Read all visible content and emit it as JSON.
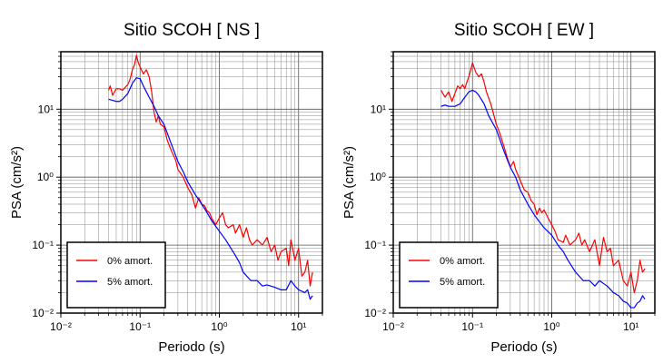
{
  "chart_data": [
    {
      "type": "line",
      "title": "Sitio SCOH [ NS ]",
      "xlabel": "Periodo (s)",
      "ylabel": "PSA (cm/s²)",
      "xscale": "log",
      "yscale": "log",
      "xlim": [
        0.01,
        20
      ],
      "ylim": [
        0.01,
        70
      ],
      "grid": true,
      "legend_position": "bottom-left",
      "x_tick_labels": [
        "10⁻²",
        "10⁻¹",
        "10⁰",
        "10¹"
      ],
      "y_tick_labels": [
        "10⁻²",
        "10⁻¹",
        "10⁰",
        "10¹"
      ],
      "series": [
        {
          "name": "0% amort.",
          "color": "#ff0000",
          "points": [
            [
              0.04,
              19
            ],
            [
              0.042,
              22
            ],
            [
              0.045,
              16
            ],
            [
              0.05,
              20
            ],
            [
              0.055,
              20
            ],
            [
              0.06,
              19
            ],
            [
              0.065,
              21
            ],
            [
              0.07,
              23
            ],
            [
              0.075,
              28
            ],
            [
              0.08,
              38
            ],
            [
              0.085,
              45
            ],
            [
              0.09,
              62
            ],
            [
              0.095,
              48
            ],
            [
              0.1,
              42
            ],
            [
              0.11,
              33
            ],
            [
              0.12,
              38
            ],
            [
              0.13,
              30
            ],
            [
              0.14,
              18
            ],
            [
              0.15,
              9
            ],
            [
              0.16,
              6.5
            ],
            [
              0.17,
              8
            ],
            [
              0.18,
              6
            ],
            [
              0.2,
              5.5
            ],
            [
              0.22,
              3.5
            ],
            [
              0.25,
              2.4
            ],
            [
              0.28,
              1.8
            ],
            [
              0.3,
              1.3
            ],
            [
              0.35,
              1.0
            ],
            [
              0.4,
              0.7
            ],
            [
              0.45,
              0.55
            ],
            [
              0.5,
              0.35
            ],
            [
              0.55,
              0.5
            ],
            [
              0.6,
              0.4
            ],
            [
              0.65,
              0.38
            ],
            [
              0.7,
              0.32
            ],
            [
              0.75,
              0.3
            ],
            [
              0.8,
              0.25
            ],
            [
              0.9,
              0.2
            ],
            [
              1.0,
              0.25
            ],
            [
              1.1,
              0.3
            ],
            [
              1.2,
              0.2
            ],
            [
              1.3,
              0.18
            ],
            [
              1.5,
              0.2
            ],
            [
              1.6,
              0.15
            ],
            [
              1.8,
              0.2
            ],
            [
              2.0,
              0.13
            ],
            [
              2.2,
              0.18
            ],
            [
              2.4,
              0.12
            ],
            [
              2.6,
              0.1
            ],
            [
              3.0,
              0.12
            ],
            [
              3.5,
              0.1
            ],
            [
              4.0,
              0.13
            ],
            [
              4.5,
              0.08
            ],
            [
              5.0,
              0.1
            ],
            [
              5.5,
              0.06
            ],
            [
              6.0,
              0.08
            ],
            [
              7.0,
              0.09
            ],
            [
              7.5,
              0.05
            ],
            [
              8.0,
              0.12
            ],
            [
              9.0,
              0.06
            ],
            [
              10.0,
              0.09
            ],
            [
              11.0,
              0.035
            ],
            [
              12.0,
              0.04
            ],
            [
              13.0,
              0.06
            ],
            [
              14.0,
              0.025
            ],
            [
              15.0,
              0.04
            ]
          ]
        },
        {
          "name": "5% amort.",
          "color": "#0000ff",
          "points": [
            [
              0.04,
              14
            ],
            [
              0.045,
              13.5
            ],
            [
              0.05,
              13
            ],
            [
              0.055,
              13
            ],
            [
              0.06,
              14
            ],
            [
              0.07,
              17
            ],
            [
              0.08,
              24
            ],
            [
              0.09,
              29
            ],
            [
              0.1,
              28
            ],
            [
              0.11,
              22
            ],
            [
              0.12,
              18
            ],
            [
              0.13,
              15
            ],
            [
              0.15,
              11
            ],
            [
              0.17,
              8
            ],
            [
              0.2,
              6
            ],
            [
              0.25,
              3
            ],
            [
              0.3,
              1.7
            ],
            [
              0.35,
              1.2
            ],
            [
              0.4,
              0.85
            ],
            [
              0.5,
              0.55
            ],
            [
              0.6,
              0.4
            ],
            [
              0.7,
              0.3
            ],
            [
              0.8,
              0.23
            ],
            [
              0.9,
              0.19
            ],
            [
              1.0,
              0.16
            ],
            [
              1.2,
              0.12
            ],
            [
              1.4,
              0.09
            ],
            [
              1.6,
              0.07
            ],
            [
              1.8,
              0.055
            ],
            [
              2.0,
              0.04
            ],
            [
              2.5,
              0.03
            ],
            [
              3.0,
              0.03
            ],
            [
              3.5,
              0.025
            ],
            [
              4.0,
              0.026
            ],
            [
              5.0,
              0.024
            ],
            [
              6.0,
              0.022
            ],
            [
              7.0,
              0.022
            ],
            [
              8.0,
              0.03
            ],
            [
              9.0,
              0.025
            ],
            [
              10.0,
              0.022
            ],
            [
              12.0,
              0.02
            ],
            [
              13.0,
              0.022
            ],
            [
              14.0,
              0.016
            ],
            [
              15.0,
              0.018
            ]
          ]
        }
      ]
    },
    {
      "type": "line",
      "title": "Sitio SCOH [ EW ]",
      "xlabel": "Periodo (s)",
      "ylabel": "PSA (cm/s²)",
      "xscale": "log",
      "yscale": "log",
      "xlim": [
        0.01,
        20
      ],
      "ylim": [
        0.01,
        70
      ],
      "grid": true,
      "legend_position": "bottom-left",
      "x_tick_labels": [
        "10⁻²",
        "10⁻¹",
        "10⁰",
        "10¹"
      ],
      "y_tick_labels": [
        "10⁻²",
        "10⁻¹",
        "10⁰",
        "10¹"
      ],
      "series": [
        {
          "name": "0% amort.",
          "color": "#ff0000",
          "points": [
            [
              0.04,
              19
            ],
            [
              0.045,
              15
            ],
            [
              0.05,
              18
            ],
            [
              0.055,
              13
            ],
            [
              0.06,
              17
            ],
            [
              0.065,
              22
            ],
            [
              0.07,
              20
            ],
            [
              0.075,
              23
            ],
            [
              0.08,
              20
            ],
            [
              0.085,
              25
            ],
            [
              0.09,
              30
            ],
            [
              0.095,
              38
            ],
            [
              0.1,
              48
            ],
            [
              0.11,
              35
            ],
            [
              0.12,
              30
            ],
            [
              0.13,
              33
            ],
            [
              0.14,
              25
            ],
            [
              0.15,
              18
            ],
            [
              0.17,
              12
            ],
            [
              0.2,
              6
            ],
            [
              0.22,
              4.5
            ],
            [
              0.25,
              2.8
            ],
            [
              0.28,
              1.8
            ],
            [
              0.3,
              1.4
            ],
            [
              0.33,
              1.7
            ],
            [
              0.35,
              1.3
            ],
            [
              0.4,
              0.9
            ],
            [
              0.45,
              0.65
            ],
            [
              0.5,
              0.6
            ],
            [
              0.55,
              0.45
            ],
            [
              0.6,
              0.4
            ],
            [
              0.65,
              0.28
            ],
            [
              0.7,
              0.35
            ],
            [
              0.75,
              0.3
            ],
            [
              0.8,
              0.33
            ],
            [
              0.9,
              0.25
            ],
            [
              1.0,
              0.2
            ],
            [
              1.1,
              0.16
            ],
            [
              1.2,
              0.12
            ],
            [
              1.4,
              0.11
            ],
            [
              1.5,
              0.14
            ],
            [
              1.7,
              0.1
            ],
            [
              2.0,
              0.12
            ],
            [
              2.2,
              0.15
            ],
            [
              2.4,
              0.1
            ],
            [
              2.6,
              0.12
            ],
            [
              3.0,
              0.08
            ],
            [
              3.5,
              0.12
            ],
            [
              4.0,
              0.05
            ],
            [
              4.5,
              0.13
            ],
            [
              5.0,
              0.08
            ],
            [
              5.5,
              0.09
            ],
            [
              6.0,
              0.05
            ],
            [
              7.0,
              0.06
            ],
            [
              8.0,
              0.03
            ],
            [
              9.0,
              0.025
            ],
            [
              10.0,
              0.04
            ],
            [
              11.0,
              0.02
            ],
            [
              12.0,
              0.03
            ],
            [
              13.0,
              0.06
            ],
            [
              14.0,
              0.04
            ],
            [
              15.0,
              0.045
            ]
          ]
        },
        {
          "name": "5% amort.",
          "color": "#0000ff",
          "points": [
            [
              0.04,
              11
            ],
            [
              0.045,
              11.5
            ],
            [
              0.05,
              11
            ],
            [
              0.06,
              11
            ],
            [
              0.07,
              12
            ],
            [
              0.08,
              15
            ],
            [
              0.09,
              18
            ],
            [
              0.1,
              19
            ],
            [
              0.11,
              18
            ],
            [
              0.12,
              16
            ],
            [
              0.14,
              12
            ],
            [
              0.16,
              8
            ],
            [
              0.2,
              5
            ],
            [
              0.25,
              2.4
            ],
            [
              0.3,
              1.4
            ],
            [
              0.35,
              1.0
            ],
            [
              0.4,
              0.65
            ],
            [
              0.5,
              0.4
            ],
            [
              0.6,
              0.28
            ],
            [
              0.7,
              0.22
            ],
            [
              0.8,
              0.18
            ],
            [
              1.0,
              0.14
            ],
            [
              1.2,
              0.1
            ],
            [
              1.4,
              0.08
            ],
            [
              1.6,
              0.06
            ],
            [
              2.0,
              0.04
            ],
            [
              2.5,
              0.03
            ],
            [
              3.0,
              0.03
            ],
            [
              3.5,
              0.025
            ],
            [
              4.0,
              0.03
            ],
            [
              5.0,
              0.025
            ],
            [
              6.0,
              0.02
            ],
            [
              7.0,
              0.018
            ],
            [
              8.0,
              0.015
            ],
            [
              9.0,
              0.014
            ],
            [
              10.0,
              0.012
            ],
            [
              11.0,
              0.012
            ],
            [
              12.0,
              0.014
            ],
            [
              13.0,
              0.015
            ],
            [
              14.0,
              0.018
            ],
            [
              15.0,
              0.016
            ]
          ]
        }
      ]
    }
  ]
}
